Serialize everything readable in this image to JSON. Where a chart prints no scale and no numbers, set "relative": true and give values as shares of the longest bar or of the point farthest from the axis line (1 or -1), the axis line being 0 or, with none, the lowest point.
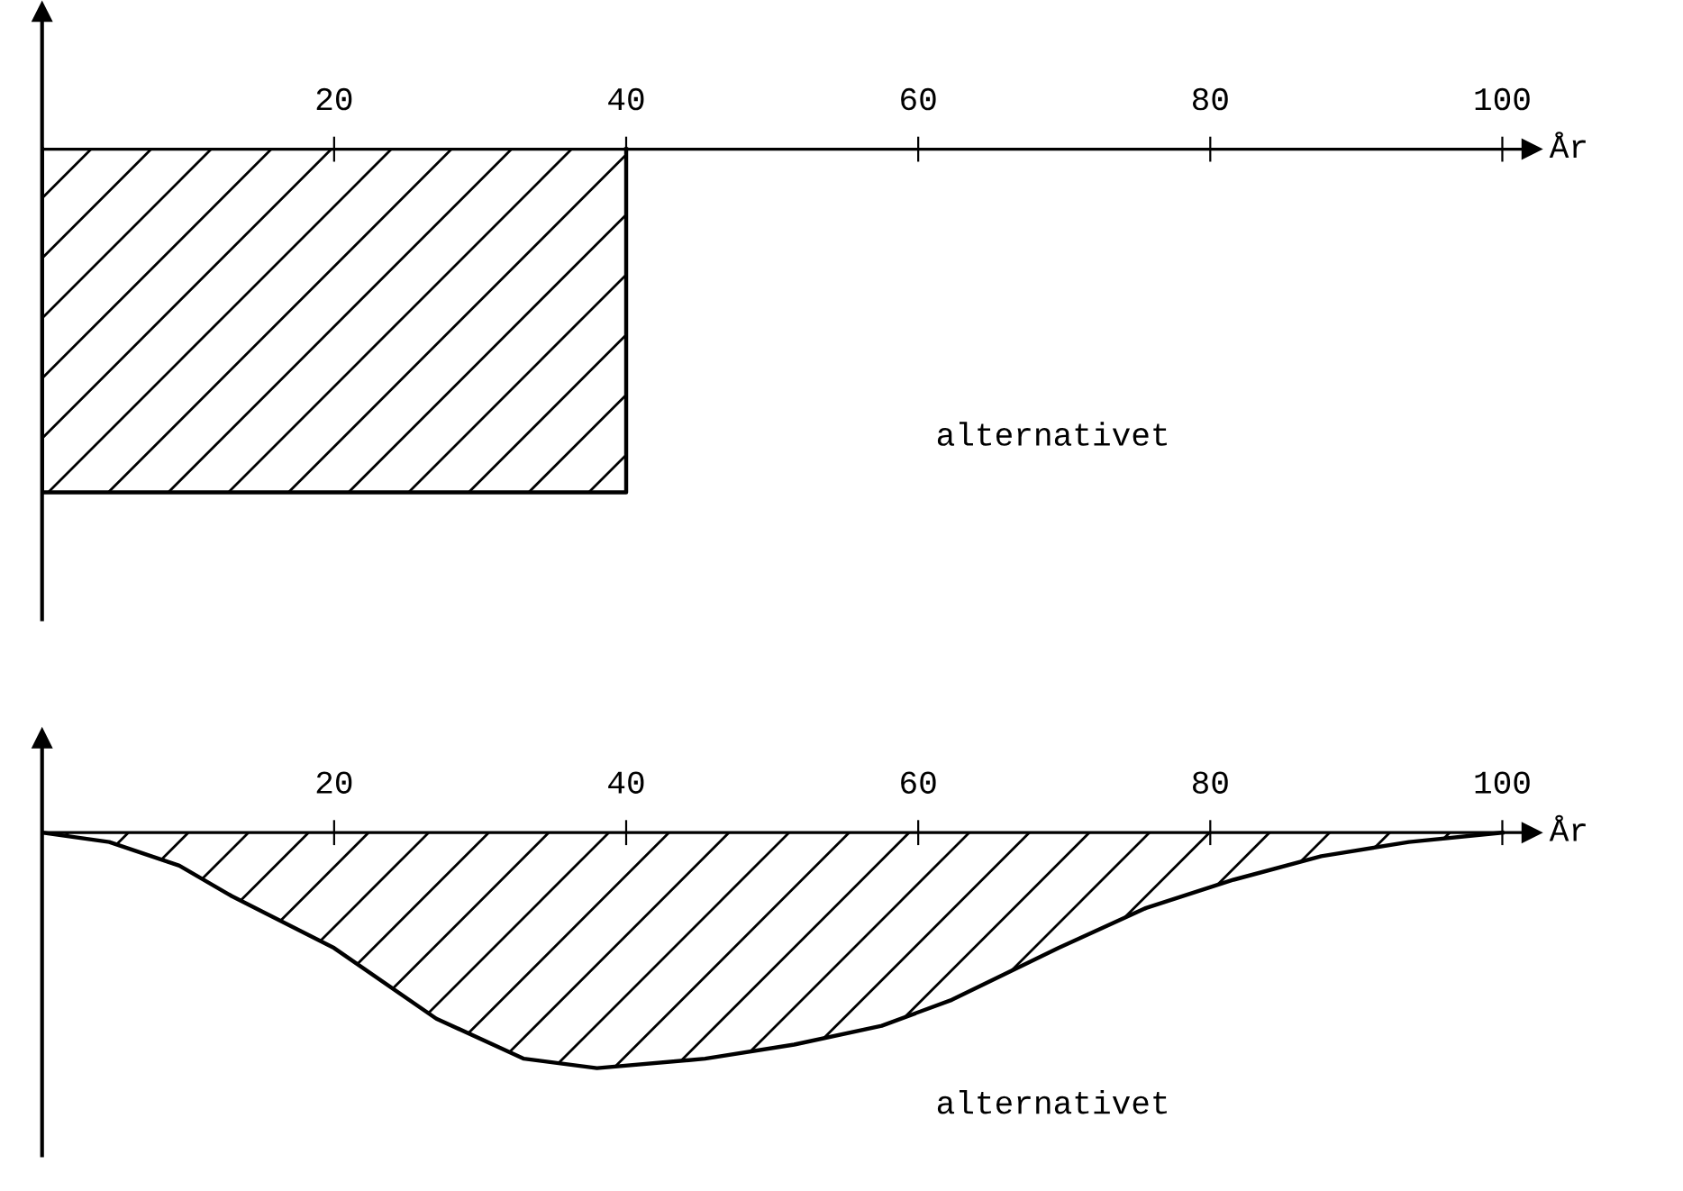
{
  "chart_data": [
    {
      "type": "area",
      "relative": true,
      "xlabel": "År",
      "xlim": [
        0,
        102
      ],
      "xticks": [
        20,
        40,
        60,
        80,
        100
      ],
      "tick_labels": "x",
      "color": "#000000",
      "x": [
        0,
        0,
        40,
        40
      ],
      "values": [
        0,
        -1,
        -1,
        0
      ],
      "annotations": [
        "alternativet"
      ]
    },
    {
      "type": "area",
      "relative": true,
      "xlabel": "År",
      "xlim": [
        0,
        102
      ],
      "xticks": [
        20,
        40,
        60,
        80,
        100
      ],
      "tick_labels": "x",
      "color": "#000000",
      "x": [
        0,
        4.6,
        9.4,
        13,
        20,
        27,
        33,
        38,
        45.4,
        51.5,
        57.5,
        62.3,
        69.6,
        75.6,
        81.6,
        87.6,
        93.6,
        100
      ],
      "values": [
        0,
        -0.04,
        -0.14,
        -0.27,
        -0.49,
        -0.79,
        -0.96,
        -1,
        -0.96,
        -0.9,
        -0.82,
        -0.71,
        -0.49,
        -0.32,
        -0.2,
        -0.1,
        -0.04,
        0
      ],
      "annotations": [
        "alternativet"
      ]
    }
  ]
}
